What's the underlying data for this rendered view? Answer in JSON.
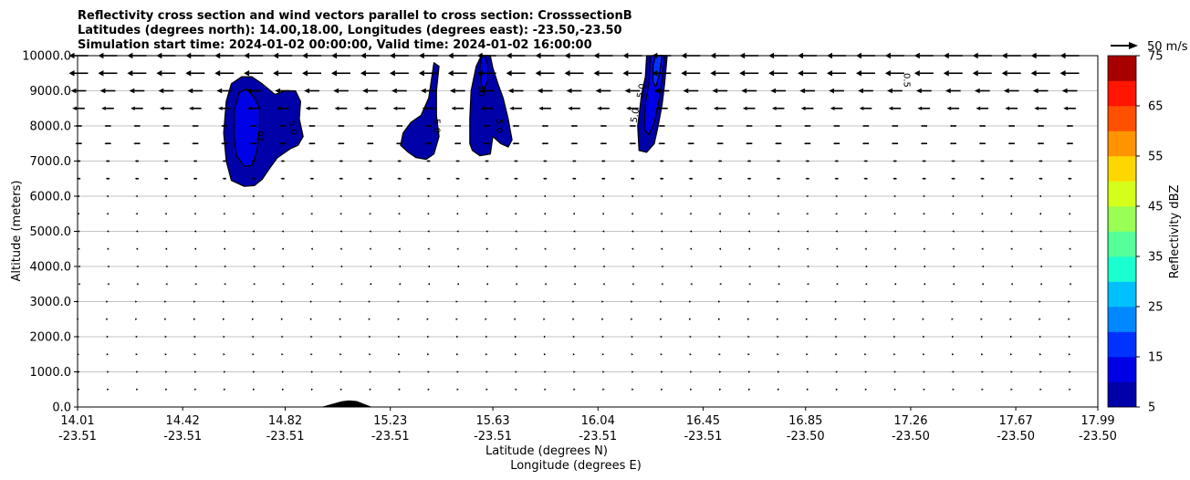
{
  "chart_data": {
    "type": "contourf-cross-section",
    "title_lines": [
      "Reflectivity cross section and wind vectors parallel to cross section: CrosssectionB",
      "Latitudes (degrees north): 14.00,18.00, Longitudes (degrees east): -23.50,-23.50",
      "Simulation start time: 2024-01-02 00:00:00, Valid time: 2024-01-02 16:00:00"
    ],
    "ylabel": "Altitude (meters)",
    "xlabel_lines": [
      "Latitude (degrees N)",
      "Longitude (degrees E)"
    ],
    "xlim": [
      14.01,
      17.99
    ],
    "ylim": [
      0,
      10000
    ],
    "y_ticks": [
      "0.0",
      "1000.0",
      "2000.0",
      "3000.0",
      "4000.0",
      "5000.0",
      "6000.0",
      "7000.0",
      "8000.0",
      "9000.0",
      "10000.0"
    ],
    "x_ticks": [
      {
        "lat": "14.01",
        "lon": "-23.51"
      },
      {
        "lat": "14.42",
        "lon": "-23.51"
      },
      {
        "lat": "14.82",
        "lon": "-23.51"
      },
      {
        "lat": "15.23",
        "lon": "-23.51"
      },
      {
        "lat": "15.63",
        "lon": "-23.51"
      },
      {
        "lat": "16.04",
        "lon": "-23.51"
      },
      {
        "lat": "16.45",
        "lon": "-23.51"
      },
      {
        "lat": "16.85",
        "lon": "-23.50"
      },
      {
        "lat": "17.26",
        "lon": "-23.50"
      },
      {
        "lat": "17.67",
        "lon": "-23.50"
      },
      {
        "lat": "17.99",
        "lon": "-23.50"
      }
    ],
    "grid": "horizontal",
    "colorbar": {
      "label": "Reflectivity dBZ",
      "levels": [
        5,
        10,
        15,
        20,
        25,
        30,
        35,
        40,
        45,
        50,
        55,
        60,
        65,
        70,
        75
      ],
      "tick_labels": [
        "5",
        "15",
        "25",
        "35",
        "45",
        "55",
        "65",
        "75"
      ],
      "colors": [
        "#0000a8",
        "#0000e6",
        "#0033ff",
        "#0088ff",
        "#00c0ff",
        "#1affd0",
        "#55ff99",
        "#99ff55",
        "#d4ff1a",
        "#ffd700",
        "#ff9400",
        "#ff5000",
        "#ff1500",
        "#a80000"
      ]
    },
    "quiver_key": "50 m/s",
    "cells": [
      {
        "name": "cell-1",
        "level": 5,
        "points": [
          [
            14.61,
            6450
          ],
          [
            14.66,
            6280
          ],
          [
            14.7,
            6300
          ],
          [
            14.73,
            6480
          ],
          [
            14.76,
            6800
          ],
          [
            14.79,
            7100
          ],
          [
            14.84,
            7350
          ],
          [
            14.87,
            7450
          ],
          [
            14.89,
            7700
          ],
          [
            14.875,
            8200
          ],
          [
            14.88,
            8700
          ],
          [
            14.86,
            9000
          ],
          [
            14.82,
            9000
          ],
          [
            14.78,
            8900
          ],
          [
            14.73,
            9200
          ],
          [
            14.69,
            9400
          ],
          [
            14.65,
            9400
          ],
          [
            14.61,
            9200
          ],
          [
            14.59,
            8700
          ],
          [
            14.58,
            7800
          ],
          [
            14.59,
            7000
          ]
        ]
      },
      {
        "name": "cell-1",
        "level": 10,
        "points": [
          [
            14.63,
            7150
          ],
          [
            14.66,
            6850
          ],
          [
            14.69,
            6880
          ],
          [
            14.71,
            7300
          ],
          [
            14.72,
            7900
          ],
          [
            14.72,
            8500
          ],
          [
            14.7,
            8800
          ],
          [
            14.67,
            9050
          ],
          [
            14.64,
            8950
          ],
          [
            14.62,
            8400
          ],
          [
            14.62,
            7700
          ]
        ]
      },
      {
        "name": "cell-2",
        "level": 5,
        "points": [
          [
            15.33,
            7100
          ],
          [
            15.37,
            7050
          ],
          [
            15.4,
            7200
          ],
          [
            15.42,
            7700
          ],
          [
            15.41,
            8300
          ],
          [
            15.41,
            9000
          ],
          [
            15.42,
            9700
          ],
          [
            15.4,
            9800
          ],
          [
            15.38,
            8800
          ],
          [
            15.35,
            8300
          ],
          [
            15.31,
            8100
          ],
          [
            15.28,
            7800
          ],
          [
            15.27,
            7450
          ],
          [
            15.3,
            7250
          ]
        ]
      },
      {
        "name": "cell-3",
        "level": 5,
        "points": [
          [
            15.55,
            7300
          ],
          [
            15.58,
            7150
          ],
          [
            15.62,
            7200
          ],
          [
            15.63,
            7700
          ],
          [
            15.66,
            7500
          ],
          [
            15.69,
            7400
          ],
          [
            15.705,
            7600
          ],
          [
            15.69,
            8200
          ],
          [
            15.67,
            8800
          ],
          [
            15.65,
            9200
          ],
          [
            15.63,
            9650
          ],
          [
            15.62,
            10000
          ],
          [
            15.585,
            10000
          ],
          [
            15.565,
            9700
          ],
          [
            15.545,
            9000
          ],
          [
            15.54,
            8200
          ],
          [
            15.54,
            7500
          ]
        ]
      },
      {
        "name": "cell-3",
        "level": 10,
        "points": [
          [
            15.585,
            9200
          ],
          [
            15.595,
            9000
          ],
          [
            15.61,
            9300
          ],
          [
            15.61,
            9700
          ],
          [
            15.6,
            10000
          ],
          [
            15.585,
            10000
          ],
          [
            15.58,
            9600
          ]
        ]
      },
      {
        "name": "cell-4",
        "level": 5,
        "points": [
          [
            16.2,
            7300
          ],
          [
            16.23,
            7250
          ],
          [
            16.26,
            7500
          ],
          [
            16.275,
            8000
          ],
          [
            16.29,
            8600
          ],
          [
            16.3,
            9200
          ],
          [
            16.31,
            10000
          ],
          [
            16.23,
            10000
          ],
          [
            16.225,
            9400
          ],
          [
            16.21,
            8900
          ],
          [
            16.195,
            8000
          ]
        ]
      },
      {
        "name": "cell-4",
        "level": 10,
        "points": [
          [
            16.22,
            7900
          ],
          [
            16.24,
            7750
          ],
          [
            16.26,
            8100
          ],
          [
            16.275,
            8600
          ],
          [
            16.29,
            9300
          ],
          [
            16.3,
            10000
          ],
          [
            16.245,
            10000
          ],
          [
            16.24,
            9300
          ],
          [
            16.225,
            8600
          ]
        ]
      },
      {
        "name": "cell-4",
        "level": 15,
        "points": [
          [
            16.255,
            9300
          ],
          [
            16.265,
            9100
          ],
          [
            16.28,
            9500
          ],
          [
            16.29,
            10000
          ],
          [
            16.265,
            10000
          ],
          [
            16.255,
            9700
          ]
        ]
      }
    ],
    "contour_labels": [
      {
        "text": "10",
        "x": 14.725,
        "y": 7700,
        "angle": -85
      },
      {
        "text": "5.0",
        "x": 14.85,
        "y": 7950,
        "angle": 80
      },
      {
        "text": "5.0",
        "x": 15.41,
        "y": 8000,
        "angle": 90
      },
      {
        "text": "10",
        "x": 15.585,
        "y": 9000,
        "angle": 90
      },
      {
        "text": "5.0",
        "x": 15.655,
        "y": 8000,
        "angle": 90
      },
      {
        "text": "5.0",
        "x": 16.185,
        "y": 8300,
        "angle": -80
      },
      {
        "text": "5.0",
        "x": 16.21,
        "y": 9000,
        "angle": -80
      },
      {
        "text": "0.5",
        "x": 17.245,
        "y": 9300,
        "angle": 90
      }
    ],
    "terrain": [
      [
        14.96,
        0
      ],
      [
        15.0,
        80
      ],
      [
        15.04,
        160
      ],
      [
        15.07,
        190
      ],
      [
        15.1,
        170
      ],
      [
        15.13,
        80
      ],
      [
        15.16,
        0
      ]
    ]
  }
}
